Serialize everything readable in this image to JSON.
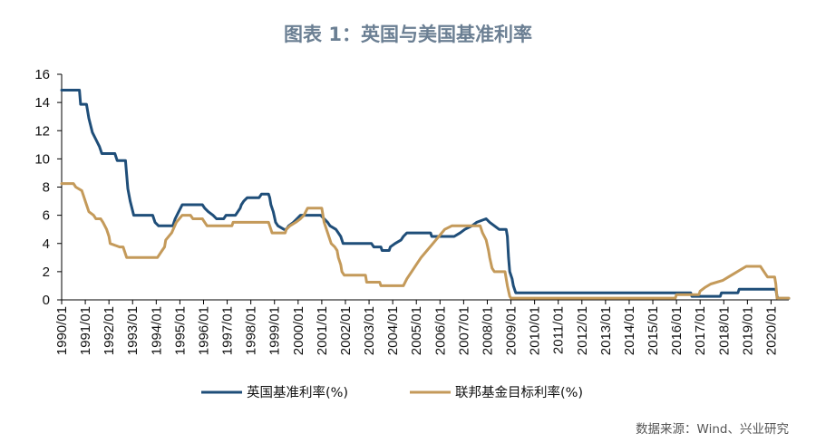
{
  "chart_data": {
    "type": "line",
    "title": "图表 1：英国与美国基准利率",
    "source": "数据来源：Wind、兴业研究",
    "ylim": [
      0,
      16
    ],
    "yticks": [
      "0",
      "2",
      "4",
      "6",
      "8",
      "10",
      "12",
      "14",
      "16"
    ],
    "xlim": [
      1990.0,
      2020.75
    ],
    "xticks": [
      "1990/01",
      "1991/01",
      "1992/01",
      "1993/01",
      "1994/01",
      "1995/01",
      "1996/01",
      "1997/01",
      "1998/01",
      "1999/01",
      "2000/01",
      "2001/01",
      "2002/01",
      "2003/01",
      "2004/01",
      "2005/01",
      "2006/01",
      "2007/01",
      "2008/01",
      "2009/01",
      "2010/01",
      "2011/01",
      "2012/01",
      "2013/01",
      "2014/01",
      "2015/01",
      "2016/01",
      "2017/01",
      "2018/01",
      "2019/01",
      "2020/01"
    ],
    "grid": false,
    "legend_position": "bottom",
    "series": [
      {
        "name": "英国基准利率(%)",
        "color": "#1f4e79",
        "points": [
          [
            1990.0,
            14.875
          ],
          [
            1990.75,
            14.875
          ],
          [
            1990.8,
            13.875
          ],
          [
            1991.05,
            13.875
          ],
          [
            1991.15,
            12.875
          ],
          [
            1991.3,
            11.875
          ],
          [
            1991.45,
            11.375
          ],
          [
            1991.6,
            10.875
          ],
          [
            1991.7,
            10.375
          ],
          [
            1992.25,
            10.375
          ],
          [
            1992.35,
            9.875
          ],
          [
            1992.7,
            9.875
          ],
          [
            1992.75,
            8.875
          ],
          [
            1992.8,
            7.875
          ],
          [
            1992.9,
            7.0
          ],
          [
            1993.05,
            6.0
          ],
          [
            1993.85,
            6.0
          ],
          [
            1993.95,
            5.5
          ],
          [
            1994.1,
            5.25
          ],
          [
            1994.7,
            5.25
          ],
          [
            1994.8,
            5.75
          ],
          [
            1994.95,
            6.25
          ],
          [
            1995.1,
            6.75
          ],
          [
            1995.95,
            6.75
          ],
          [
            1996.05,
            6.5
          ],
          [
            1996.2,
            6.25
          ],
          [
            1996.4,
            6.0
          ],
          [
            1996.55,
            5.75
          ],
          [
            1996.85,
            5.75
          ],
          [
            1996.95,
            6.0
          ],
          [
            1997.35,
            6.0
          ],
          [
            1997.45,
            6.25
          ],
          [
            1997.55,
            6.5
          ],
          [
            1997.6,
            6.75
          ],
          [
            1997.7,
            7.0
          ],
          [
            1997.85,
            7.25
          ],
          [
            1998.35,
            7.25
          ],
          [
            1998.45,
            7.5
          ],
          [
            1998.75,
            7.5
          ],
          [
            1998.8,
            7.25
          ],
          [
            1998.85,
            6.75
          ],
          [
            1998.95,
            6.25
          ],
          [
            1999.05,
            5.5
          ],
          [
            1999.15,
            5.25
          ],
          [
            1999.4,
            5.0
          ],
          [
            1999.5,
            5.0
          ],
          [
            1999.6,
            5.25
          ],
          [
            1999.8,
            5.5
          ],
          [
            1999.95,
            5.75
          ],
          [
            2000.1,
            6.0
          ],
          [
            2000.95,
            6.0
          ],
          [
            2001.1,
            5.75
          ],
          [
            2001.25,
            5.5
          ],
          [
            2001.35,
            5.25
          ],
          [
            2001.6,
            5.0
          ],
          [
            2001.7,
            4.75
          ],
          [
            2001.8,
            4.5
          ],
          [
            2001.9,
            4.0
          ],
          [
            2003.1,
            4.0
          ],
          [
            2003.2,
            3.75
          ],
          [
            2003.5,
            3.75
          ],
          [
            2003.55,
            3.5
          ],
          [
            2003.85,
            3.5
          ],
          [
            2003.9,
            3.75
          ],
          [
            2004.1,
            4.0
          ],
          [
            2004.35,
            4.25
          ],
          [
            2004.45,
            4.5
          ],
          [
            2004.6,
            4.75
          ],
          [
            2005.6,
            4.75
          ],
          [
            2005.65,
            4.5
          ],
          [
            2006.6,
            4.5
          ],
          [
            2006.85,
            4.75
          ],
          [
            2007.05,
            5.0
          ],
          [
            2007.35,
            5.25
          ],
          [
            2007.55,
            5.5
          ],
          [
            2007.95,
            5.75
          ],
          [
            2008.1,
            5.5
          ],
          [
            2008.3,
            5.25
          ],
          [
            2008.5,
            5.0
          ],
          [
            2008.8,
            5.0
          ],
          [
            2008.85,
            4.5
          ],
          [
            2008.9,
            3.0
          ],
          [
            2008.95,
            2.0
          ],
          [
            2009.05,
            1.5
          ],
          [
            2009.1,
            1.0
          ],
          [
            2009.2,
            0.5
          ],
          [
            2016.6,
            0.5
          ],
          [
            2016.65,
            0.25
          ],
          [
            2017.85,
            0.25
          ],
          [
            2017.9,
            0.5
          ],
          [
            2018.6,
            0.5
          ],
          [
            2018.65,
            0.75
          ],
          [
            2020.2,
            0.75
          ],
          [
            2020.25,
            0.25
          ],
          [
            2020.3,
            0.1
          ],
          [
            2020.75,
            0.1
          ]
        ]
      },
      {
        "name": "联邦基金目标利率(%)",
        "color": "#c49a5a",
        "points": [
          [
            1990.0,
            8.25
          ],
          [
            1990.5,
            8.25
          ],
          [
            1990.6,
            8.0
          ],
          [
            1990.85,
            7.75
          ],
          [
            1990.95,
            7.25
          ],
          [
            1991.05,
            6.75
          ],
          [
            1991.15,
            6.25
          ],
          [
            1991.35,
            6.0
          ],
          [
            1991.45,
            5.75
          ],
          [
            1991.65,
            5.75
          ],
          [
            1991.75,
            5.5
          ],
          [
            1991.9,
            5.0
          ],
          [
            1992.0,
            4.5
          ],
          [
            1992.05,
            4.0
          ],
          [
            1992.45,
            3.75
          ],
          [
            1992.6,
            3.75
          ],
          [
            1992.7,
            3.25
          ],
          [
            1992.75,
            3.0
          ],
          [
            1994.05,
            3.0
          ],
          [
            1994.15,
            3.25
          ],
          [
            1994.25,
            3.5
          ],
          [
            1994.35,
            3.75
          ],
          [
            1994.4,
            4.25
          ],
          [
            1994.65,
            4.75
          ],
          [
            1994.85,
            5.5
          ],
          [
            1995.1,
            6.0
          ],
          [
            1995.45,
            6.0
          ],
          [
            1995.55,
            5.75
          ],
          [
            1995.95,
            5.75
          ],
          [
            1996.05,
            5.5
          ],
          [
            1996.15,
            5.25
          ],
          [
            1997.2,
            5.25
          ],
          [
            1997.25,
            5.5
          ],
          [
            1998.75,
            5.5
          ],
          [
            1998.8,
            5.25
          ],
          [
            1998.85,
            5.0
          ],
          [
            1998.9,
            4.75
          ],
          [
            1999.45,
            4.75
          ],
          [
            1999.5,
            5.0
          ],
          [
            1999.65,
            5.25
          ],
          [
            1999.9,
            5.5
          ],
          [
            2000.1,
            5.75
          ],
          [
            2000.25,
            6.0
          ],
          [
            2000.4,
            6.5
          ],
          [
            2001.0,
            6.5
          ],
          [
            2001.05,
            6.0
          ],
          [
            2001.1,
            5.5
          ],
          [
            2001.2,
            5.0
          ],
          [
            2001.3,
            4.5
          ],
          [
            2001.4,
            4.0
          ],
          [
            2001.55,
            3.75
          ],
          [
            2001.65,
            3.5
          ],
          [
            2001.7,
            3.0
          ],
          [
            2001.8,
            2.5
          ],
          [
            2001.85,
            2.0
          ],
          [
            2001.95,
            1.75
          ],
          [
            2002.85,
            1.75
          ],
          [
            2002.9,
            1.25
          ],
          [
            2003.45,
            1.25
          ],
          [
            2003.5,
            1.0
          ],
          [
            2004.45,
            1.0
          ],
          [
            2004.6,
            1.5
          ],
          [
            2004.8,
            2.0
          ],
          [
            2005.0,
            2.5
          ],
          [
            2005.2,
            3.0
          ],
          [
            2005.45,
            3.5
          ],
          [
            2005.7,
            4.0
          ],
          [
            2005.95,
            4.5
          ],
          [
            2006.2,
            5.0
          ],
          [
            2006.5,
            5.25
          ],
          [
            2007.7,
            5.25
          ],
          [
            2007.8,
            4.75
          ],
          [
            2007.95,
            4.25
          ],
          [
            2008.05,
            3.5
          ],
          [
            2008.1,
            3.0
          ],
          [
            2008.2,
            2.25
          ],
          [
            2008.3,
            2.0
          ],
          [
            2008.75,
            2.0
          ],
          [
            2008.8,
            1.5
          ],
          [
            2008.85,
            1.0
          ],
          [
            2008.95,
            0.25
          ],
          [
            2009.0,
            0.125
          ],
          [
            2015.95,
            0.125
          ],
          [
            2016.0,
            0.375
          ],
          [
            2016.95,
            0.375
          ],
          [
            2017.0,
            0.625
          ],
          [
            2017.2,
            0.875
          ],
          [
            2017.45,
            1.125
          ],
          [
            2017.95,
            1.375
          ],
          [
            2018.2,
            1.625
          ],
          [
            2018.45,
            1.875
          ],
          [
            2018.7,
            2.125
          ],
          [
            2018.95,
            2.375
          ],
          [
            2019.55,
            2.375
          ],
          [
            2019.65,
            2.125
          ],
          [
            2019.75,
            1.875
          ],
          [
            2019.85,
            1.625
          ],
          [
            2020.15,
            1.625
          ],
          [
            2020.2,
            1.125
          ],
          [
            2020.25,
            0.125
          ],
          [
            2020.75,
            0.125
          ]
        ]
      }
    ]
  }
}
